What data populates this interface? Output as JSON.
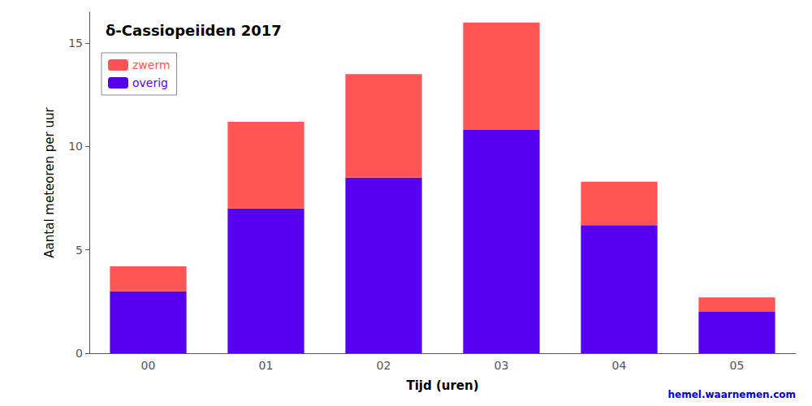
{
  "chart_data": {
    "type": "bar",
    "stacked": true,
    "title": "δ-Cassiopeiiden 2017",
    "xlabel": "Tijd (uren)",
    "ylabel": "Aantal meteoren per uur",
    "categories": [
      "00",
      "01",
      "02",
      "03",
      "04",
      "05"
    ],
    "series": [
      {
        "name": "overig",
        "color": "#5500ee",
        "values": [
          3.0,
          7.0,
          8.5,
          10.8,
          6.2,
          2.0
        ]
      },
      {
        "name": "zwerm",
        "color": "#ff5555",
        "values": [
          1.2,
          4.2,
          5.0,
          5.2,
          2.1,
          0.7
        ]
      }
    ],
    "ylim": [
      0,
      16.5
    ],
    "yticks": [
      0,
      5,
      10,
      15
    ],
    "grid": false,
    "legend": "upper left",
    "annotations": [
      {
        "text": "hemel.waarnemen.com",
        "color": "#0000cc"
      }
    ]
  }
}
